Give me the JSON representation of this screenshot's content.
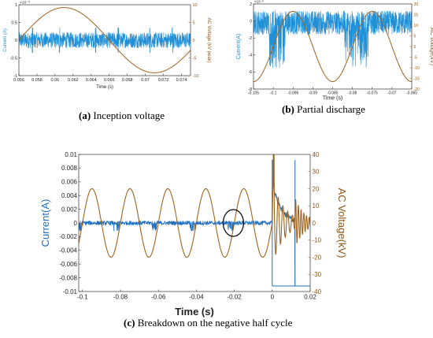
{
  "chart_data": [
    {
      "id": "a",
      "type": "line",
      "caption_letter": "(a)",
      "caption_text": " Inception voltage",
      "xlabel": "Time (s)",
      "ylabel_left": "Current (A)",
      "ylabel_right": "AC Voltage (kV peak)",
      "left_exponent": "×10⁻³",
      "xlim": [
        0.056,
        0.075
      ],
      "ylim_left": [
        -1,
        1
      ],
      "ylim_right": [
        -10,
        10
      ],
      "xticks": [
        0.056,
        0.058,
        0.06,
        0.062,
        0.064,
        0.066,
        0.068,
        0.07,
        0.072,
        0.074
      ],
      "xtick_labels": [
        "0.056",
        "0.058",
        "0.06",
        "0.062",
        "0.064",
        "0.066",
        "0.068",
        "0.07",
        "0.072",
        "0.074"
      ],
      "yticks_left": [
        -1,
        -0.5,
        0,
        0.5,
        1
      ],
      "ytick_labels_left": [
        "-1",
        "-0.5",
        "0",
        "0.5",
        "1"
      ],
      "yticks_right": [
        -10,
        -5,
        0,
        5,
        10
      ],
      "ytick_labels_right": [
        "-10",
        "-5",
        "0",
        "5",
        "10"
      ],
      "series": [
        {
          "role": "current",
          "axis": "left",
          "color": "#1f8fd6",
          "noise_amplitude": 0.22,
          "spike_amplitude": 0.35,
          "spike_times": [
            0.0575,
            0.0605,
            0.0645,
            0.067,
            0.0705,
            0.073
          ]
        },
        {
          "role": "voltage",
          "axis": "right",
          "color": "#a0631e",
          "amplitude": 9.2,
          "frequency_hz": 50,
          "phase_zero_time": 0.056
        }
      ]
    },
    {
      "id": "b",
      "type": "line",
      "caption_letter": "(b)",
      "caption_text": " Partial discharge",
      "xlabel": "Time (s)",
      "ylabel_left": "Current(A)",
      "ylabel_right": "AC Voltage(kV)",
      "left_exponent": "×10⁻³",
      "xlim": [
        -0.105,
        -0.065
      ],
      "ylim_left": [
        -8,
        2
      ],
      "ylim_right": [
        -20,
        20
      ],
      "xticks": [
        -0.105,
        -0.1,
        -0.095,
        -0.09,
        -0.085,
        -0.08,
        -0.075,
        -0.07,
        -0.065
      ],
      "xtick_labels": [
        "-0.105",
        "-0.1",
        "-0.095",
        "-0.09",
        "-0.085",
        "-0.08",
        "-0.075",
        "-0.07",
        "-0.065"
      ],
      "yticks_left": [
        -8,
        -6,
        -4,
        -2,
        0,
        2
      ],
      "ytick_labels_left": [
        "-8",
        "-6",
        "-4",
        "-2",
        "0",
        "2"
      ],
      "yticks_right": [
        -20,
        -15,
        -10,
        -5,
        0,
        5,
        10,
        15,
        20
      ],
      "ytick_labels_right": [
        "-20",
        "-15",
        "-10",
        "-5",
        "0",
        "5",
        "10",
        "15",
        "20"
      ],
      "series": [
        {
          "role": "current",
          "axis": "left",
          "color": "#1f8fd6",
          "band_upper": 1.2,
          "band_lower": -1.6,
          "discharge_windows": [
            [
              -0.101,
              -0.097
            ],
            [
              -0.082,
              -0.076
            ]
          ],
          "discharge_depth": -5.5
        },
        {
          "role": "voltage",
          "axis": "right",
          "color": "#a0631e",
          "amplitude": 16.5,
          "frequency_hz": 50,
          "phase_zero_time": -0.1
        }
      ]
    },
    {
      "id": "c",
      "type": "line",
      "caption_letter": "(c)",
      "caption_text": " Breakdown on the negative half cycle",
      "xlabel": "Time (s)",
      "ylabel_left": "Current(A)",
      "ylabel_right": "AC Voltage(kV)",
      "xlim": [
        -0.102,
        0.02
      ],
      "ylim_left": [
        -0.01,
        0.01
      ],
      "ylim_right": [
        -40,
        40
      ],
      "xticks": [
        -0.1,
        -0.08,
        -0.06,
        -0.04,
        -0.02,
        0,
        0.02
      ],
      "xtick_labels": [
        "-0.1",
        "-0.08",
        "-0.06",
        "-0.04",
        "-0.02",
        "0",
        "0.02"
      ],
      "yticks_left": [
        -0.01,
        -0.008,
        -0.006,
        -0.004,
        -0.002,
        0,
        0.002,
        0.004,
        0.006,
        0.008,
        0.01
      ],
      "ytick_labels_left": [
        "-0.01",
        "-0.008",
        "-0.006",
        "-0.004",
        "-0.002",
        "0",
        "0.002",
        "0.004",
        "0.006",
        "0.008",
        "0.01"
      ],
      "yticks_right": [
        -40,
        -30,
        -20,
        -10,
        0,
        10,
        20,
        30,
        40
      ],
      "ytick_labels_right": [
        "-40",
        "-30",
        "-20",
        "-10",
        "0",
        "10",
        "20",
        "30",
        "40"
      ],
      "annotation": {
        "shape": "ellipse",
        "center_x": -0.0205,
        "center_y": 0
      },
      "series": [
        {
          "role": "current",
          "axis": "left",
          "color": "#1f6fc0",
          "band": 0.0003,
          "spike_times": [
            -0.1,
            -0.08,
            -0.06,
            -0.04,
            -0.02
          ],
          "breakdown_time": 0.0,
          "recovery_time": 0.012,
          "breakdown_level": 0.0092
        },
        {
          "role": "voltage",
          "axis": "right",
          "color": "#a0631e",
          "amplitude": 20,
          "frequency_hz": 50,
          "phase_zero_time": -0.1
        }
      ]
    }
  ]
}
